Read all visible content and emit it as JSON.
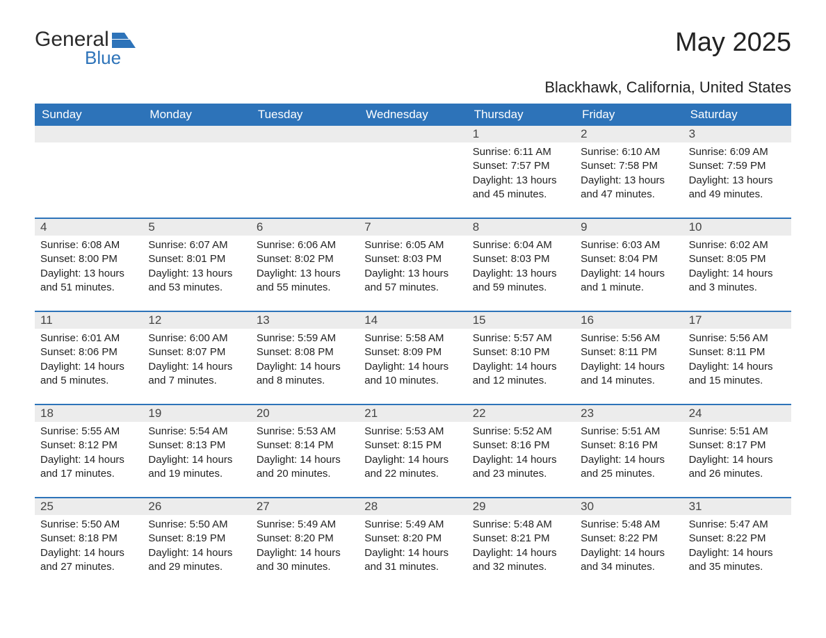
{
  "logo": {
    "text_general": "General",
    "text_blue": "Blue",
    "shape_color": "#2d73b9"
  },
  "header": {
    "month_title": "May 2025",
    "location": "Blackhawk, California, United States"
  },
  "calendar": {
    "day_names": [
      "Sunday",
      "Monday",
      "Tuesday",
      "Wednesday",
      "Thursday",
      "Friday",
      "Saturday"
    ],
    "header_bg": "#2d73b9",
    "header_fg": "#ffffff",
    "week_border_color": "#2d73b9",
    "daynum_bg": "#ececec",
    "text_color": "#222222",
    "weeks": [
      [
        {
          "day": ""
        },
        {
          "day": ""
        },
        {
          "day": ""
        },
        {
          "day": ""
        },
        {
          "day": "1",
          "sunrise": "Sunrise: 6:11 AM",
          "sunset": "Sunset: 7:57 PM",
          "daylight": "Daylight: 13 hours and 45 minutes."
        },
        {
          "day": "2",
          "sunrise": "Sunrise: 6:10 AM",
          "sunset": "Sunset: 7:58 PM",
          "daylight": "Daylight: 13 hours and 47 minutes."
        },
        {
          "day": "3",
          "sunrise": "Sunrise: 6:09 AM",
          "sunset": "Sunset: 7:59 PM",
          "daylight": "Daylight: 13 hours and 49 minutes."
        }
      ],
      [
        {
          "day": "4",
          "sunrise": "Sunrise: 6:08 AM",
          "sunset": "Sunset: 8:00 PM",
          "daylight": "Daylight: 13 hours and 51 minutes."
        },
        {
          "day": "5",
          "sunrise": "Sunrise: 6:07 AM",
          "sunset": "Sunset: 8:01 PM",
          "daylight": "Daylight: 13 hours and 53 minutes."
        },
        {
          "day": "6",
          "sunrise": "Sunrise: 6:06 AM",
          "sunset": "Sunset: 8:02 PM",
          "daylight": "Daylight: 13 hours and 55 minutes."
        },
        {
          "day": "7",
          "sunrise": "Sunrise: 6:05 AM",
          "sunset": "Sunset: 8:03 PM",
          "daylight": "Daylight: 13 hours and 57 minutes."
        },
        {
          "day": "8",
          "sunrise": "Sunrise: 6:04 AM",
          "sunset": "Sunset: 8:03 PM",
          "daylight": "Daylight: 13 hours and 59 minutes."
        },
        {
          "day": "9",
          "sunrise": "Sunrise: 6:03 AM",
          "sunset": "Sunset: 8:04 PM",
          "daylight": "Daylight: 14 hours and 1 minute."
        },
        {
          "day": "10",
          "sunrise": "Sunrise: 6:02 AM",
          "sunset": "Sunset: 8:05 PM",
          "daylight": "Daylight: 14 hours and 3 minutes."
        }
      ],
      [
        {
          "day": "11",
          "sunrise": "Sunrise: 6:01 AM",
          "sunset": "Sunset: 8:06 PM",
          "daylight": "Daylight: 14 hours and 5 minutes."
        },
        {
          "day": "12",
          "sunrise": "Sunrise: 6:00 AM",
          "sunset": "Sunset: 8:07 PM",
          "daylight": "Daylight: 14 hours and 7 minutes."
        },
        {
          "day": "13",
          "sunrise": "Sunrise: 5:59 AM",
          "sunset": "Sunset: 8:08 PM",
          "daylight": "Daylight: 14 hours and 8 minutes."
        },
        {
          "day": "14",
          "sunrise": "Sunrise: 5:58 AM",
          "sunset": "Sunset: 8:09 PM",
          "daylight": "Daylight: 14 hours and 10 minutes."
        },
        {
          "day": "15",
          "sunrise": "Sunrise: 5:57 AM",
          "sunset": "Sunset: 8:10 PM",
          "daylight": "Daylight: 14 hours and 12 minutes."
        },
        {
          "day": "16",
          "sunrise": "Sunrise: 5:56 AM",
          "sunset": "Sunset: 8:11 PM",
          "daylight": "Daylight: 14 hours and 14 minutes."
        },
        {
          "day": "17",
          "sunrise": "Sunrise: 5:56 AM",
          "sunset": "Sunset: 8:11 PM",
          "daylight": "Daylight: 14 hours and 15 minutes."
        }
      ],
      [
        {
          "day": "18",
          "sunrise": "Sunrise: 5:55 AM",
          "sunset": "Sunset: 8:12 PM",
          "daylight": "Daylight: 14 hours and 17 minutes."
        },
        {
          "day": "19",
          "sunrise": "Sunrise: 5:54 AM",
          "sunset": "Sunset: 8:13 PM",
          "daylight": "Daylight: 14 hours and 19 minutes."
        },
        {
          "day": "20",
          "sunrise": "Sunrise: 5:53 AM",
          "sunset": "Sunset: 8:14 PM",
          "daylight": "Daylight: 14 hours and 20 minutes."
        },
        {
          "day": "21",
          "sunrise": "Sunrise: 5:53 AM",
          "sunset": "Sunset: 8:15 PM",
          "daylight": "Daylight: 14 hours and 22 minutes."
        },
        {
          "day": "22",
          "sunrise": "Sunrise: 5:52 AM",
          "sunset": "Sunset: 8:16 PM",
          "daylight": "Daylight: 14 hours and 23 minutes."
        },
        {
          "day": "23",
          "sunrise": "Sunrise: 5:51 AM",
          "sunset": "Sunset: 8:16 PM",
          "daylight": "Daylight: 14 hours and 25 minutes."
        },
        {
          "day": "24",
          "sunrise": "Sunrise: 5:51 AM",
          "sunset": "Sunset: 8:17 PM",
          "daylight": "Daylight: 14 hours and 26 minutes."
        }
      ],
      [
        {
          "day": "25",
          "sunrise": "Sunrise: 5:50 AM",
          "sunset": "Sunset: 8:18 PM",
          "daylight": "Daylight: 14 hours and 27 minutes."
        },
        {
          "day": "26",
          "sunrise": "Sunrise: 5:50 AM",
          "sunset": "Sunset: 8:19 PM",
          "daylight": "Daylight: 14 hours and 29 minutes."
        },
        {
          "day": "27",
          "sunrise": "Sunrise: 5:49 AM",
          "sunset": "Sunset: 8:20 PM",
          "daylight": "Daylight: 14 hours and 30 minutes."
        },
        {
          "day": "28",
          "sunrise": "Sunrise: 5:49 AM",
          "sunset": "Sunset: 8:20 PM",
          "daylight": "Daylight: 14 hours and 31 minutes."
        },
        {
          "day": "29",
          "sunrise": "Sunrise: 5:48 AM",
          "sunset": "Sunset: 8:21 PM",
          "daylight": "Daylight: 14 hours and 32 minutes."
        },
        {
          "day": "30",
          "sunrise": "Sunrise: 5:48 AM",
          "sunset": "Sunset: 8:22 PM",
          "daylight": "Daylight: 14 hours and 34 minutes."
        },
        {
          "day": "31",
          "sunrise": "Sunrise: 5:47 AM",
          "sunset": "Sunset: 8:22 PM",
          "daylight": "Daylight: 14 hours and 35 minutes."
        }
      ]
    ]
  }
}
